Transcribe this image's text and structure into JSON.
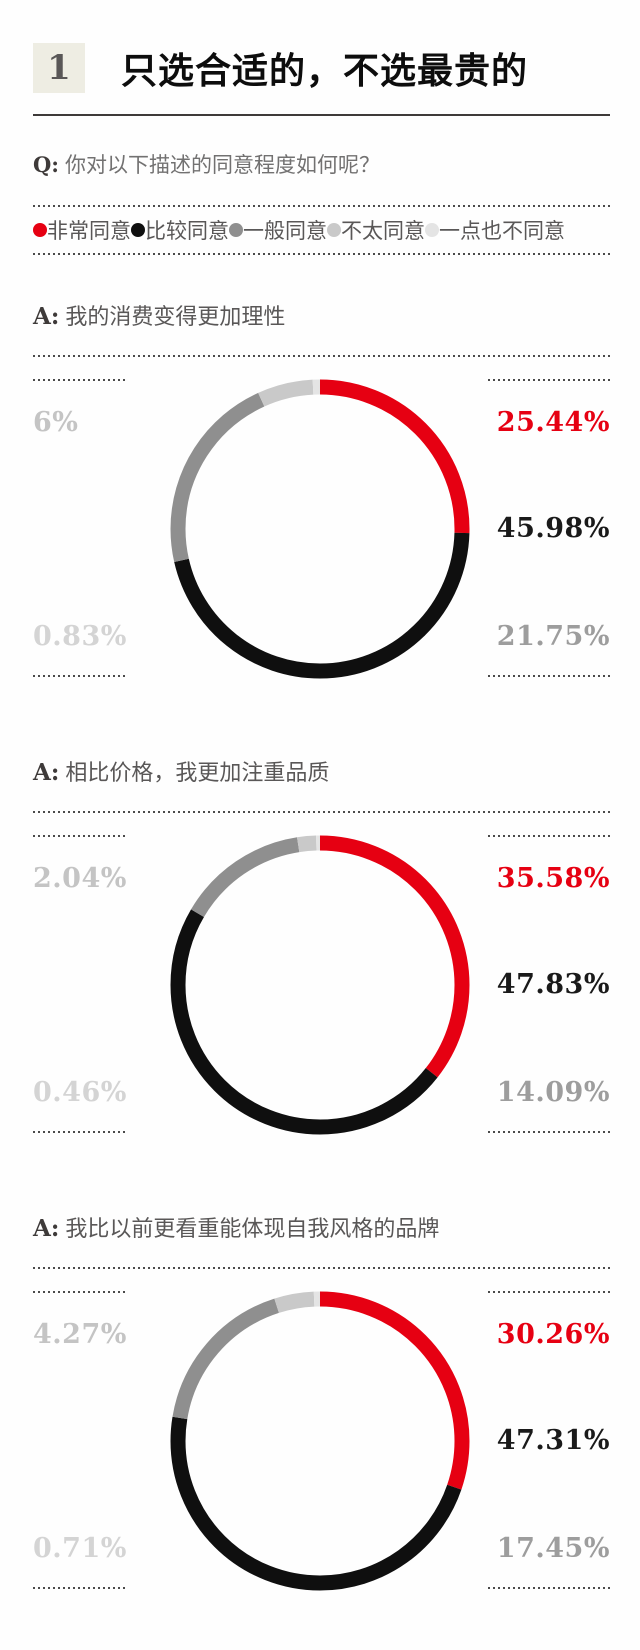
{
  "header": {
    "number": "1",
    "title": "只选合适的，不选最贵的"
  },
  "question": {
    "prefix": "Q:",
    "text": "你对以下描述的同意程度如何呢？"
  },
  "legend": {
    "position": "top",
    "items": [
      {
        "label": "非常同意",
        "color": "#e60012"
      },
      {
        "label": "比较同意",
        "color": "#0f0f0f"
      },
      {
        "label": "一般同意",
        "color": "#8f8f8f"
      },
      {
        "label": "不太同意",
        "color": "#c9c9c9"
      },
      {
        "label": "一点也不同意",
        "color": "#e4e4e4"
      }
    ]
  },
  "label_colors": {
    "right_top": "#e60012",
    "right_mid": "#1a1a1a",
    "right_bottom": "#9d9d9d",
    "left_top": "#c4c4c4",
    "left_bottom": "#d4d4d4"
  },
  "chart_data": [
    {
      "type": "donut",
      "answer_prefix": "A:",
      "statement": "我的消费变得更加理性",
      "categories": [
        "非常同意",
        "比较同意",
        "一般同意",
        "不太同意",
        "一点也不同意"
      ],
      "values": [
        25.44,
        45.98,
        21.75,
        6,
        0.83
      ],
      "unit": "%",
      "start_angle_deg": 0,
      "direction": "clockwise",
      "display": {
        "strongly_agree": "25.44%",
        "somewhat_agree": "45.98%",
        "neutral": "21.75%",
        "disagree": "6%",
        "strongly_disagree": "0.83%"
      }
    },
    {
      "type": "donut",
      "answer_prefix": "A:",
      "statement": "相比价格，我更加注重品质",
      "categories": [
        "非常同意",
        "比较同意",
        "一般同意",
        "不太同意",
        "一点也不同意"
      ],
      "values": [
        35.58,
        47.83,
        14.09,
        2.04,
        0.46
      ],
      "unit": "%",
      "start_angle_deg": 0,
      "direction": "clockwise",
      "display": {
        "strongly_agree": "35.58%",
        "somewhat_agree": "47.83%",
        "neutral": "14.09%",
        "disagree": "2.04%",
        "strongly_disagree": "0.46%"
      }
    },
    {
      "type": "donut",
      "answer_prefix": "A:",
      "statement": "我比以前更看重能体现自我风格的品牌",
      "categories": [
        "非常同意",
        "比较同意",
        "一般同意",
        "不太同意",
        "一点也不同意"
      ],
      "values": [
        30.26,
        47.31,
        17.45,
        4.27,
        0.71
      ],
      "unit": "%",
      "start_angle_deg": 0,
      "direction": "clockwise",
      "display": {
        "strongly_agree": "30.26%",
        "somewhat_agree": "47.31%",
        "neutral": "17.45%",
        "disagree": "4.27%",
        "strongly_disagree": "0.71%"
      }
    }
  ]
}
